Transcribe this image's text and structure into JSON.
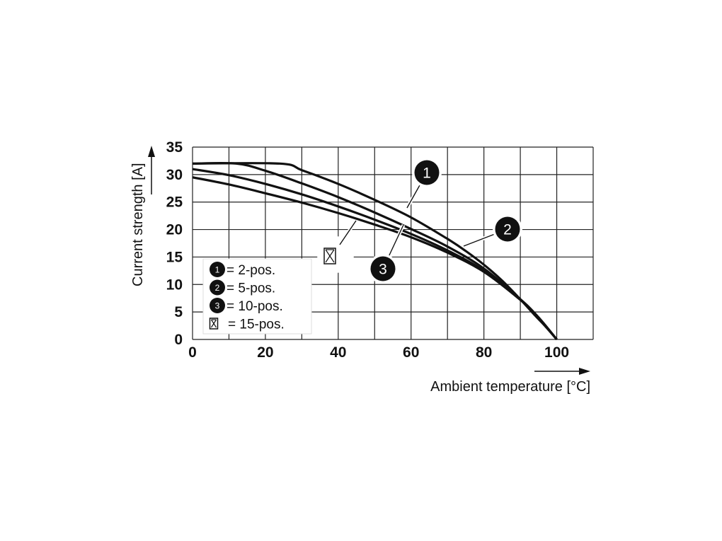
{
  "chart_data": {
    "type": "line",
    "xlabel": "Ambient temperature [°C]",
    "ylabel": "Current strength [A]",
    "xlim": [
      0,
      110
    ],
    "ylim": [
      0,
      35
    ],
    "x_ticks": [
      0,
      20,
      40,
      60,
      80,
      100
    ],
    "y_ticks": [
      0,
      5,
      10,
      15,
      20,
      25,
      30,
      35
    ],
    "grid": true,
    "series": [
      {
        "id": "1",
        "name": "= 2-pos.",
        "marker": "1",
        "x": [
          0,
          24,
          30,
          40,
          50,
          60,
          70,
          75,
          80,
          85,
          90,
          94,
          97,
          100
        ],
        "y": [
          32,
          32,
          30.8,
          28.3,
          25.4,
          22.2,
          18.3,
          16.1,
          13.6,
          10.7,
          7.3,
          4.4,
          2.3,
          0
        ]
      },
      {
        "id": "2",
        "name": "= 5-pos.",
        "marker": "2",
        "x": [
          0,
          12,
          20,
          30,
          40,
          50,
          60,
          70,
          80,
          90,
          95,
          100
        ],
        "y": [
          32,
          32,
          30.7,
          28.4,
          25.9,
          23.1,
          20.1,
          16.9,
          12.9,
          7.3,
          4,
          0
        ]
      },
      {
        "id": "3",
        "name": "= 10-pos.",
        "marker": "3",
        "x": [
          0,
          10,
          20,
          30,
          40,
          50,
          60,
          70,
          80,
          90,
          95,
          100
        ],
        "y": [
          31,
          29.9,
          28.3,
          26.4,
          24.2,
          21.8,
          19.2,
          16.2,
          12.5,
          7.3,
          4,
          0
        ]
      },
      {
        "id": "4",
        "name": "= 15-pos.",
        "marker": "crossed-box",
        "x": [
          0,
          10,
          20,
          30,
          40,
          50,
          60,
          70,
          80,
          90,
          95,
          100
        ],
        "y": [
          29.5,
          28.2,
          26.6,
          24.9,
          23,
          20.9,
          18.6,
          15.8,
          12.3,
          7.2,
          4,
          0
        ]
      }
    ]
  }
}
